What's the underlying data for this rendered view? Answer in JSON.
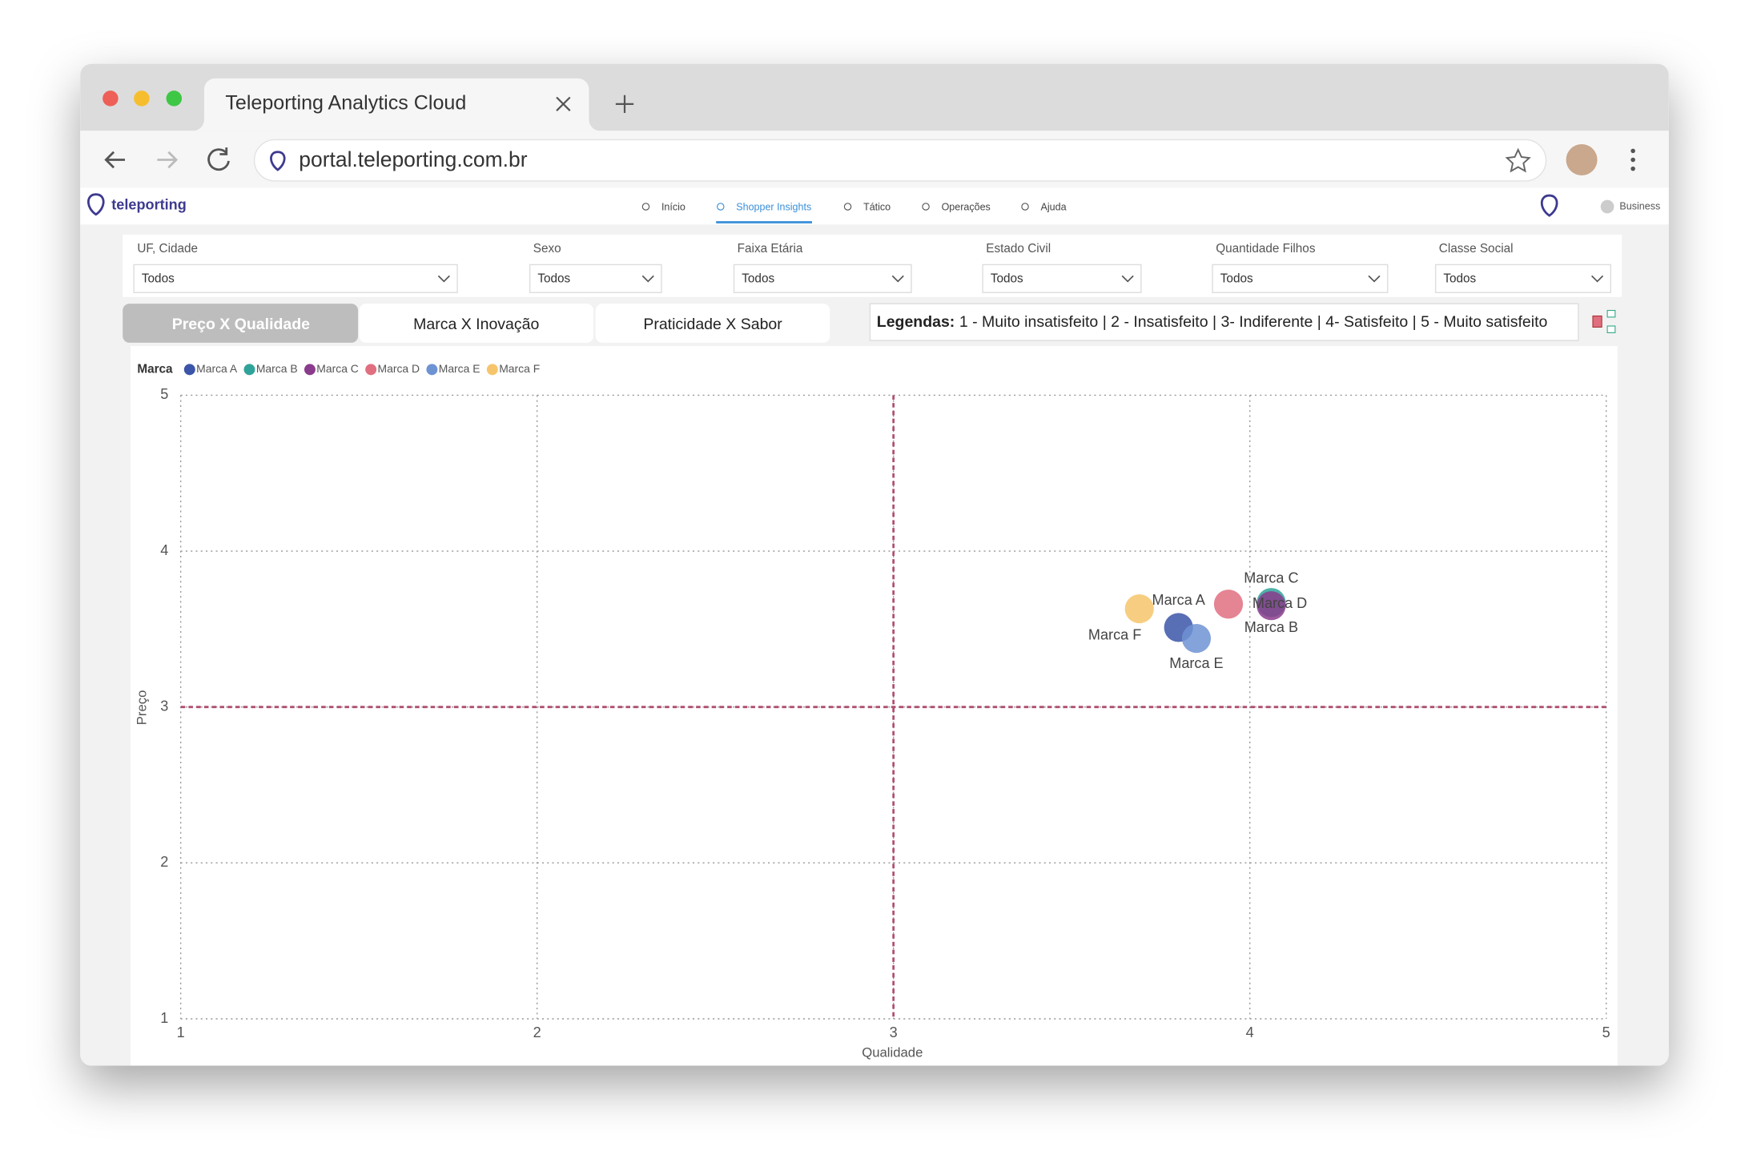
{
  "browser": {
    "tab_title": "Teleporting Analytics Cloud",
    "url": "portal.teleporting.com.br"
  },
  "nav": {
    "logo": "teleporting",
    "items": [
      "Início",
      "Shopper Insights",
      "Tático",
      "Operações",
      "Ajuda"
    ],
    "user": "Business"
  },
  "filters": [
    {
      "label": "UF, Cidade",
      "value": "Todos"
    },
    {
      "label": "Sexo",
      "value": "Todos"
    },
    {
      "label": "Faixa Etária",
      "value": "Todos"
    },
    {
      "label": "Estado Civil",
      "value": "Todos"
    },
    {
      "label": "Quantidade Filhos",
      "value": "Todos"
    },
    {
      "label": "Classe Social",
      "value": "Todos"
    }
  ],
  "tabs": [
    "Preço X Qualidade",
    "Marca X Inovação",
    "Praticidade X Sabor"
  ],
  "legend_note": {
    "title": "Legendas:",
    "text": "1 - Muito insatisfeito | 2 - Insatisfeito | 3- Indiferente | 4- Satisfeito | 5 - Muito satisfeito"
  },
  "chart_data": {
    "type": "scatter",
    "legend_title": "Marca",
    "x_label": "Qualidade",
    "y_label": "Preço",
    "xlim": [
      1,
      5
    ],
    "ylim": [
      1,
      5
    ],
    "xticks": [
      1,
      2,
      3,
      4,
      5
    ],
    "yticks": [
      1,
      2,
      3,
      4,
      5
    ],
    "grid": true,
    "reference_x": 3,
    "reference_y": 3,
    "series": [
      {
        "name": "Marca A",
        "color": "#3b55a8",
        "x": [
          3.8
        ],
        "values": [
          3.51
        ]
      },
      {
        "name": "Marca B",
        "color": "#2fa39a",
        "x": [
          4.06
        ],
        "values": [
          3.67
        ]
      },
      {
        "name": "Marca C",
        "color": "#8a3c8c",
        "x": [
          4.06
        ],
        "values": [
          3.65
        ]
      },
      {
        "name": "Marca D",
        "color": "#e06f80",
        "x": [
          3.94
        ],
        "values": [
          3.66
        ]
      },
      {
        "name": "Marca E",
        "color": "#6e93d3",
        "x": [
          3.85
        ],
        "values": [
          3.44
        ]
      },
      {
        "name": "Marca F",
        "color": "#f6c56b",
        "x": [
          3.69
        ],
        "values": [
          3.63
        ]
      }
    ]
  }
}
